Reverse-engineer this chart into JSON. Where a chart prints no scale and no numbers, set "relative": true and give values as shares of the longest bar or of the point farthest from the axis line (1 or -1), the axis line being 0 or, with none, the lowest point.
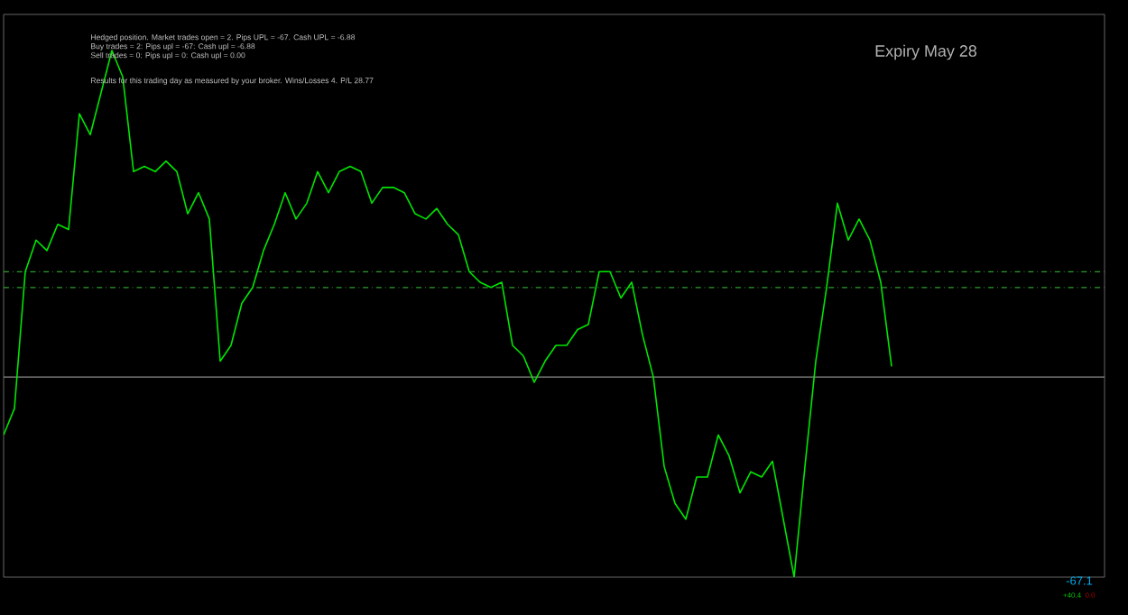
{
  "chart_data": {
    "type": "line",
    "relative": true,
    "categories": [
      null,
      null,
      null,
      null,
      null,
      null,
      null,
      null,
      null,
      null,
      null,
      null,
      null,
      null,
      null,
      null,
      null,
      null,
      null,
      null,
      null,
      null,
      null,
      null,
      null,
      null,
      null,
      null,
      null,
      null,
      null,
      null,
      null,
      null,
      null,
      null,
      null,
      null,
      null,
      null,
      null,
      null,
      null,
      null,
      null,
      null,
      null,
      null,
      null,
      null,
      null,
      null,
      null,
      null,
      null,
      null,
      null,
      null,
      null,
      null,
      null,
      null,
      null,
      null,
      null,
      null,
      null,
      null,
      null,
      null,
      null,
      null,
      null,
      null,
      null,
      null,
      null,
      null,
      null,
      null,
      null,
      null,
      null
    ],
    "series": [
      {
        "color": "#00e600",
        "values": [
          0.27,
          0.32,
          0.58,
          0.64,
          0.62,
          0.67,
          0.66,
          0.88,
          0.84,
          0.92,
          1.0,
          0.95,
          0.77,
          0.78,
          0.77,
          0.79,
          0.77,
          0.69,
          0.73,
          0.68,
          0.41,
          0.44,
          0.52,
          0.55,
          0.62,
          0.67,
          0.73,
          0.68,
          0.71,
          0.77,
          0.73,
          0.77,
          0.78,
          0.77,
          0.71,
          0.74,
          0.74,
          0.73,
          0.69,
          0.68,
          0.7,
          0.67,
          0.65,
          0.58,
          0.56,
          0.55,
          0.56,
          0.44,
          0.42,
          0.37,
          0.41,
          0.44,
          0.44,
          0.47,
          0.48,
          0.58,
          0.58,
          0.53,
          0.56,
          0.46,
          0.38,
          0.21,
          0.14,
          0.11,
          0.19,
          0.19,
          0.27,
          0.23,
          0.16,
          0.2,
          0.19,
          0.22,
          0.11,
          0.0,
          0.21,
          0.41,
          0.55,
          0.71,
          0.64,
          0.68,
          0.64,
          0.56,
          0.4
        ]
      }
    ],
    "ref_lines": [
      {
        "axis": "y",
        "value": 0.58,
        "color": "#2e9e2e",
        "line_style": "dashdot"
      },
      {
        "axis": "y",
        "value": 0.55,
        "color": "#2e9e2e",
        "line_style": "dashdot"
      },
      {
        "axis": "y",
        "value": 0.38,
        "color": "#8a8a8a",
        "line_style": "solid"
      }
    ],
    "annotations": [
      "Hedged position. Market trades open = 2. Pips UPL = -67. Cash UPL = -6.88",
      "Buy trades = 2: Pips upl = -67: Cash upl = -6.88",
      "Sell trades = 0: Pips upl = 0: Cash upl = 0.00",
      "Results for this trading day as measured by your broker. Wins/Losses 4. P/L 28.77",
      "Expiry May 28",
      "-67.1",
      "+40.4",
      "0.0"
    ]
  }
}
